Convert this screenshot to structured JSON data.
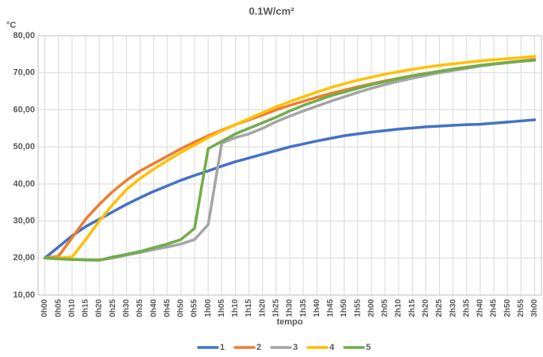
{
  "chart_data": {
    "type": "line",
    "title": "0.1W/cm²",
    "y_label": "°C",
    "x_label": "tempo",
    "categories": [
      "0h00",
      "0h05",
      "0h10",
      "0h15",
      "0h20",
      "0h25",
      "0h30",
      "0h35",
      "0h40",
      "0h45",
      "0h50",
      "0h55",
      "1h00",
      "1h05",
      "1h10",
      "1h15",
      "1h20",
      "1h25",
      "1h30",
      "1h35",
      "1h40",
      "1h45",
      "1h50",
      "1h55",
      "2h00",
      "2h05",
      "2h10",
      "2h15",
      "2h20",
      "2h25",
      "2h30",
      "2h35",
      "2h40",
      "2h45",
      "2h50",
      "2h55",
      "3h00"
    ],
    "series": [
      {
        "name": "1",
        "color": "#4472c4",
        "values": [
          20,
          23,
          26,
          28.5,
          30.5,
          32.5,
          34.5,
          36.3,
          38,
          39.5,
          41,
          42.3,
          43.5,
          44.8,
          46,
          47,
          48,
          49,
          50,
          50.8,
          51.6,
          52.3,
          53,
          53.5,
          54,
          54.4,
          54.8,
          55.1,
          55.4,
          55.6,
          55.8,
          56,
          56.1,
          56.4,
          56.7,
          57,
          57.3
        ]
      },
      {
        "name": "2",
        "color": "#ed7d31",
        "values": [
          20,
          20.5,
          25.5,
          30.5,
          34.5,
          38,
          41,
          43.5,
          45.5,
          47.5,
          49.5,
          51.3,
          53,
          54.5,
          56,
          57.3,
          58.6,
          60,
          61.2,
          62.3,
          63.4,
          64.4,
          65.3,
          66.2,
          67,
          67.8,
          68.5,
          69.2,
          69.8,
          70.4,
          70.9,
          71.4,
          71.9,
          72.4,
          72.8,
          73.2,
          73.6
        ]
      },
      {
        "name": "3",
        "color": "#a5a5a5",
        "values": [
          20,
          19.8,
          19.6,
          19.5,
          19.5,
          20,
          20.8,
          21.5,
          22.3,
          23,
          23.8,
          25,
          29,
          51,
          52.5,
          53.5,
          55,
          56.8,
          58.3,
          59.7,
          61,
          62.3,
          63.5,
          64.7,
          65.8,
          66.8,
          67.7,
          68.5,
          69.3,
          70,
          70.6,
          71.2,
          71.8,
          72.3,
          72.7,
          73.1,
          73.4
        ]
      },
      {
        "name": "4",
        "color": "#ffc000",
        "values": [
          20,
          20,
          20.3,
          25,
          30,
          34.5,
          38.5,
          41.5,
          44,
          46.3,
          48.5,
          50.5,
          52.5,
          54.3,
          56,
          57.6,
          59.2,
          60.8,
          62.2,
          63.5,
          64.8,
          66,
          67,
          68,
          68.8,
          69.6,
          70.3,
          70.9,
          71.5,
          72,
          72.4,
          72.8,
          73.2,
          73.5,
          73.8,
          74.1,
          74.4
        ]
      },
      {
        "name": "5",
        "color": "#70ad47",
        "values": [
          20,
          19.8,
          19.6,
          19.5,
          19.4,
          20.3,
          21,
          21.8,
          22.8,
          23.8,
          25,
          28,
          49.5,
          51.5,
          53.5,
          55,
          56.5,
          58,
          59.7,
          61.2,
          62.5,
          63.8,
          64.8,
          65.8,
          66.8,
          67.6,
          68.4,
          69.2,
          69.8,
          70.4,
          71,
          71.5,
          72,
          72.4,
          72.8,
          73.1,
          73.4
        ]
      }
    ],
    "ylim": [
      10,
      80
    ],
    "yticks": [
      {
        "value": 10,
        "label": "10,00"
      },
      {
        "value": 20,
        "label": "20,00"
      },
      {
        "value": 30,
        "label": "30,00"
      },
      {
        "value": 40,
        "label": "40,00"
      },
      {
        "value": 50,
        "label": "50,00"
      },
      {
        "value": 60,
        "label": "60,00"
      },
      {
        "value": 70,
        "label": "70,00"
      },
      {
        "value": 80,
        "label": "80,00"
      }
    ],
    "grid": true,
    "legend": "bottom"
  }
}
